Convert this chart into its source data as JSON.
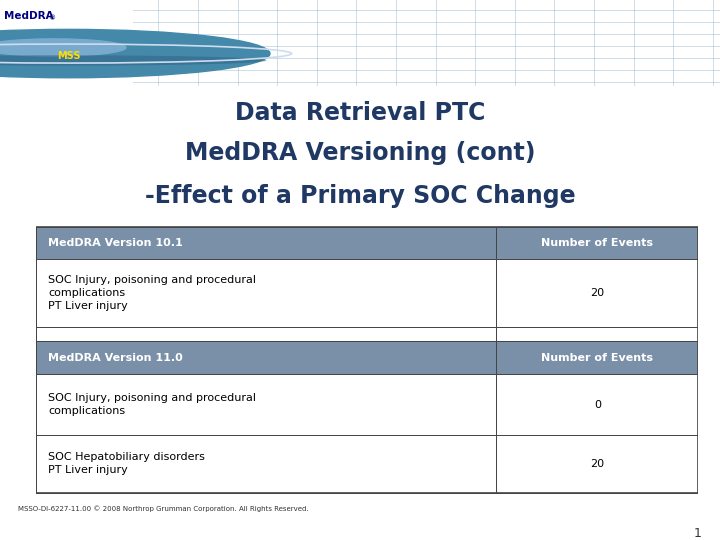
{
  "title_line1": "Data Retrieval PTC",
  "title_line2": "MedDRA Versioning (cont)",
  "title_line3": "-Effect of a Primary SOC Change",
  "title_color": "#1F3864",
  "bg_color": "#FFFFFF",
  "header_bg": "#7A8FA8",
  "header_text_color": "#FFFFFF",
  "table_border_color": "#444444",
  "banner_color": "#BBCFDF",
  "col1_header_v10": "MedDRA Version 10.1",
  "col2_header_v10": "Number of Events",
  "row1_col1": "SOC Injury, poisoning and procedural\ncomplications\nPT Liver injury",
  "row1_col2": "20",
  "col1_header_v11": "MedDRA Version 11.0",
  "col2_header_v11": "Number of Events",
  "row2_col1": "SOC Injury, poisoning and procedural\ncomplications",
  "row2_col2": "0",
  "row3_col1": "SOC Hepatobiliary disorders\nPT Liver injury",
  "row3_col2": "20",
  "footer_text": "MSSO-DI-6227-11.00 © 2008 Northrop Grumman Corporation. All Rights Reserved.",
  "page_number": "1"
}
